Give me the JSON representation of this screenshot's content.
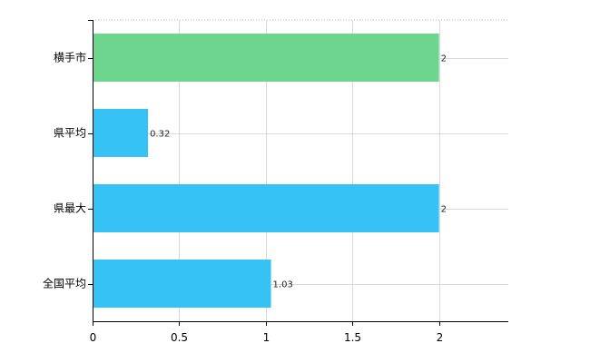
{
  "chart_data": {
    "type": "bar",
    "orientation": "horizontal",
    "categories": [
      "横手市",
      "県平均",
      "県最大",
      "全国平均"
    ],
    "values": [
      2,
      0.32,
      2,
      1.03
    ],
    "value_labels": [
      "2",
      "0.32",
      "2",
      "1.03"
    ],
    "bar_colors": [
      "#6dd58e",
      "#37c2f5",
      "#37c2f5",
      "#37c2f5"
    ],
    "xlim": [
      0,
      2.4
    ],
    "xticks": [
      0,
      0.5,
      1,
      1.5,
      2
    ],
    "xtick_labels": [
      "0",
      "0.5",
      "1",
      "1.5",
      "2"
    ],
    "grid": true,
    "legend": "none",
    "title": "",
    "xlabel": "",
    "ylabel": ""
  }
}
